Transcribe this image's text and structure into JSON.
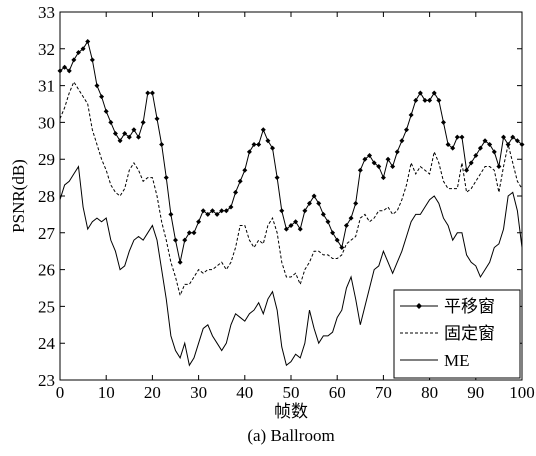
{
  "chart_data": {
    "type": "line",
    "ylabel": "PSNR(dB)",
    "xlabel": "帧数",
    "caption": "(a) Ballroom",
    "x": [
      0,
      1,
      2,
      3,
      4,
      5,
      6,
      7,
      8,
      9,
      10,
      11,
      12,
      13,
      14,
      15,
      16,
      17,
      18,
      19,
      20,
      21,
      22,
      23,
      24,
      25,
      26,
      27,
      28,
      29,
      30,
      31,
      32,
      33,
      34,
      35,
      36,
      37,
      38,
      39,
      40,
      41,
      42,
      43,
      44,
      45,
      46,
      47,
      48,
      49,
      50,
      51,
      52,
      53,
      54,
      55,
      56,
      57,
      58,
      59,
      60,
      61,
      62,
      63,
      64,
      65,
      66,
      67,
      68,
      69,
      70,
      71,
      72,
      73,
      74,
      75,
      76,
      77,
      78,
      79,
      80,
      81,
      82,
      83,
      84,
      85,
      86,
      87,
      88,
      89,
      90,
      91,
      92,
      93,
      94,
      95,
      96,
      97,
      98,
      99,
      100
    ],
    "series": [
      {
        "name": "平移窗",
        "color": "#000000",
        "style": "solid-diamond",
        "values": [
          31.4,
          31.5,
          31.4,
          31.7,
          31.9,
          32.0,
          32.2,
          31.7,
          31.0,
          30.7,
          30.3,
          30.0,
          29.7,
          29.5,
          29.7,
          29.6,
          29.8,
          29.6,
          30.0,
          30.8,
          30.8,
          30.1,
          29.4,
          28.5,
          27.5,
          26.8,
          26.2,
          26.8,
          27.0,
          27.0,
          27.3,
          27.6,
          27.5,
          27.6,
          27.5,
          27.6,
          27.6,
          27.7,
          28.1,
          28.4,
          28.7,
          29.2,
          29.4,
          29.4,
          29.8,
          29.5,
          29.3,
          28.5,
          27.6,
          27.1,
          27.2,
          27.3,
          27.1,
          27.6,
          27.8,
          28.0,
          27.8,
          27.5,
          27.3,
          27.0,
          26.8,
          26.6,
          27.2,
          27.4,
          27.8,
          28.7,
          29.0,
          29.1,
          28.9,
          28.8,
          28.5,
          29.0,
          28.8,
          29.2,
          29.5,
          29.8,
          30.2,
          30.6,
          30.8,
          30.6,
          30.6,
          30.8,
          30.6,
          30.0,
          29.4,
          29.3,
          29.6,
          29.6,
          28.7,
          28.9,
          29.1,
          29.3,
          29.5,
          29.4,
          29.2,
          28.8,
          29.6,
          29.4,
          29.6,
          29.5,
          29.4
        ]
      },
      {
        "name": "固定窗",
        "color": "#000000",
        "style": "dashed",
        "values": [
          30.1,
          30.4,
          30.8,
          31.1,
          30.9,
          30.7,
          30.5,
          29.8,
          29.4,
          29.0,
          28.7,
          28.3,
          28.1,
          28.0,
          28.2,
          28.7,
          28.9,
          28.7,
          28.4,
          28.5,
          28.5,
          28.0,
          27.3,
          26.8,
          26.2,
          25.8,
          25.3,
          25.6,
          25.6,
          25.8,
          26.0,
          25.9,
          26.0,
          26.0,
          26.1,
          26.2,
          26.0,
          26.2,
          26.6,
          27.2,
          27.2,
          26.8,
          26.6,
          26.8,
          26.7,
          27.2,
          27.4,
          27.0,
          26.2,
          25.8,
          25.8,
          25.9,
          25.6,
          26.0,
          26.2,
          26.5,
          26.5,
          26.4,
          26.4,
          26.3,
          26.3,
          26.4,
          26.7,
          26.8,
          26.9,
          27.4,
          27.5,
          27.3,
          27.4,
          27.6,
          27.6,
          27.7,
          27.5,
          27.6,
          27.9,
          28.3,
          28.9,
          28.6,
          28.8,
          28.7,
          28.6,
          29.2,
          28.9,
          28.4,
          28.2,
          28.2,
          28.2,
          28.9,
          28.1,
          28.2,
          28.4,
          28.6,
          28.8,
          28.8,
          28.7,
          28.1,
          28.8,
          29.4,
          28.9,
          28.4,
          28.2
        ]
      },
      {
        "name": "ME",
        "color": "#000000",
        "style": "solid",
        "values": [
          27.9,
          28.3,
          28.4,
          28.6,
          28.8,
          27.7,
          27.1,
          27.3,
          27.4,
          27.3,
          27.4,
          26.8,
          26.5,
          26.0,
          26.1,
          26.5,
          26.8,
          26.9,
          26.8,
          27.0,
          27.2,
          26.8,
          26.0,
          25.2,
          24.2,
          23.8,
          23.6,
          24.0,
          23.4,
          23.6,
          24.0,
          24.4,
          24.5,
          24.2,
          24.0,
          23.8,
          24.0,
          24.5,
          24.8,
          24.7,
          24.6,
          24.8,
          24.9,
          25.1,
          24.8,
          25.2,
          25.4,
          24.9,
          23.9,
          23.4,
          23.5,
          23.7,
          23.6,
          24.0,
          24.9,
          24.4,
          24.0,
          24.2,
          24.2,
          24.3,
          24.7,
          24.9,
          25.5,
          25.8,
          25.2,
          24.5,
          25.0,
          25.5,
          26.0,
          26.1,
          26.5,
          26.2,
          25.9,
          26.2,
          26.5,
          26.9,
          27.3,
          27.5,
          27.5,
          27.7,
          27.9,
          28.0,
          27.8,
          27.4,
          27.2,
          26.8,
          27.0,
          27.0,
          26.4,
          26.2,
          26.1,
          25.8,
          26.0,
          26.2,
          26.6,
          26.7,
          27.1,
          28.0,
          28.1,
          27.6,
          26.6
        ]
      }
    ],
    "xlim": [
      0,
      100
    ],
    "xticks": [
      0,
      10,
      20,
      30,
      40,
      50,
      60,
      70,
      80,
      90,
      100
    ],
    "ylim": [
      23,
      33
    ],
    "yticks": [
      23,
      24,
      25,
      26,
      27,
      28,
      29,
      30,
      31,
      32,
      33
    ],
    "legend": "lower right"
  }
}
